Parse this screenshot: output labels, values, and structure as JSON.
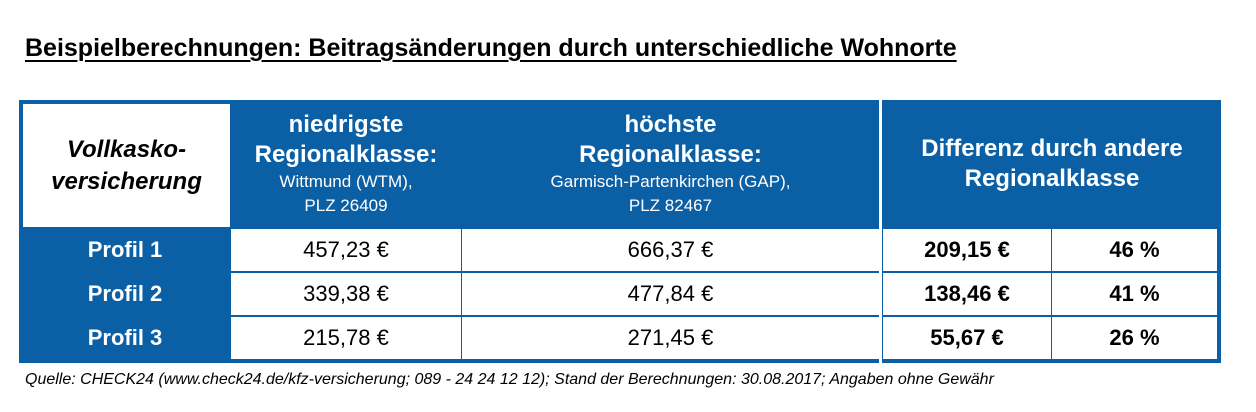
{
  "title": "Beispielberechnungen: Beitragsänderungen durch unterschiedliche Wohnorte",
  "table": {
    "corner": {
      "line1": "Vollkasko-",
      "line2": "versicherung"
    },
    "col_low": {
      "line1": "niedrigste",
      "line2": "Regionalklasse:",
      "sub1": "Wittmund (WTM),",
      "sub2": "PLZ 26409"
    },
    "col_high": {
      "line1": "höchste",
      "line2": "Regionalklasse:",
      "sub1": "Garmisch-Partenkirchen (GAP),",
      "sub2": "PLZ 82467"
    },
    "col_diff": {
      "line1": "Differenz durch andere",
      "line2": "Regionalklasse"
    },
    "rows": [
      {
        "label": "Profil 1",
        "low": "457,23 €",
        "high": "666,37 €",
        "diff": "209,15 €",
        "pct": "46 %"
      },
      {
        "label": "Profil 2",
        "low": "339,38 €",
        "high": "477,84 €",
        "diff": "138,46 €",
        "pct": "41 %"
      },
      {
        "label": "Profil 3",
        "low": "215,78 €",
        "high": "271,45 €",
        "diff": "55,67 €",
        "pct": "26 %"
      }
    ]
  },
  "footer": "Quelle: CHECK24 (www.check24.de/kfz-versicherung; 089 - 24 24 12 12); Stand der Berechnungen: 30.08.2017; Angaben ohne Gewähr",
  "colors": {
    "header_blue": "#0b5fa5",
    "cell_white": "#ffffff",
    "text": "#000000"
  }
}
